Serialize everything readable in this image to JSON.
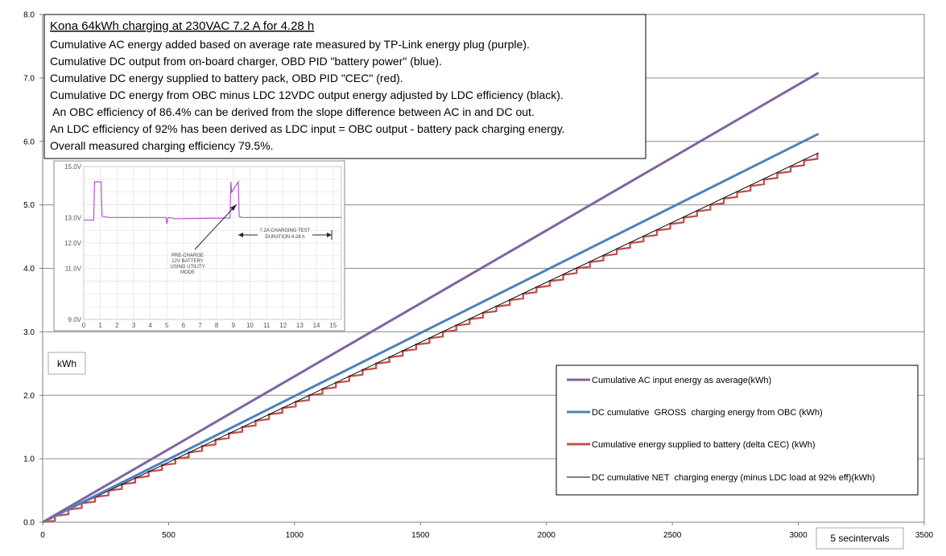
{
  "chart_data": {
    "type": "line",
    "xlim": [
      0,
      3500
    ],
    "ylim": [
      0,
      8
    ],
    "x_ticks": [
      "0",
      "500",
      "1000",
      "1500",
      "2000",
      "2500",
      "3000",
      "3500"
    ],
    "y_ticks": [
      "0.0",
      "1.0",
      "2.0",
      "3.0",
      "4.0",
      "5.0",
      "6.0",
      "7.0",
      "8.0"
    ],
    "ylabel": "kWh",
    "xlabel": "5 secintervals",
    "grid": "horizontal",
    "legend_position": "bottom-right",
    "info_title": "Kona 64kWh charging at 230VAC 7.2 A for 4.28 h",
    "info_lines": [
      "Cumulative AC energy added based on average rate measured by TP-Link energy plug (purple).",
      "Cumulative DC output from on-board charger, OBD PID \"battery power\" (blue).",
      "Cumulative DC energy supplied to battery pack, OBD PID \"CEC\" (red).",
      "Cumulative DC energy from OBC minus LDC 12VDC output energy adjusted by LDC efficiency (black).",
      " An OBC efficiency of 86.4% can be derived from the slope difference between AC in and DC out.",
      "An LDC efficiency of 92% has been derived as LDC input = OBC output - battery pack charging energy.",
      "Overall measured charging  efficiency 79.5%."
    ],
    "series": [
      {
        "name": "Cumulative AC input energy as average(kWh)",
        "color": "#8064A2",
        "style": "line",
        "x": [
          0,
          3080
        ],
        "y": [
          0,
          7.08
        ]
      },
      {
        "name": "DC cumulative  GROSS  charging energy from OBC (kWh)",
        "color": "#4F81BD",
        "style": "line",
        "x": [
          0,
          3080
        ],
        "y": [
          0,
          6.12
        ]
      },
      {
        "name": "Cumulative energy supplied to battery (delta CEC) (kWh)",
        "color": "#C0504D",
        "style": "step",
        "x": [
          0,
          3080
        ],
        "y": [
          0,
          5.8
        ],
        "step_kwh": 0.1
      },
      {
        "name": "DC cumulative NET  charging energy (minus LDC load at 92% eff)(kWh)",
        "color": "#000000",
        "style": "line",
        "x": [
          0,
          3080
        ],
        "y": [
          0,
          5.82
        ]
      }
    ],
    "inset": {
      "type": "line",
      "xlim": [
        0,
        15.5
      ],
      "ylim": [
        9,
        15
      ],
      "x_ticks": [
        "0",
        "1",
        "2",
        "3",
        "4",
        "5",
        "6",
        "7",
        "8",
        "9",
        "10",
        "11",
        "12",
        "13",
        "14",
        "15"
      ],
      "y_ticks": [
        "9.0V",
        "11.0V",
        "12.0V",
        "13.0V",
        "15.0V"
      ],
      "color": "#B455C8",
      "x": [
        0,
        0.6,
        0.65,
        0.75,
        1.05,
        1.1,
        1.5,
        4.95,
        5.0,
        5.08,
        5.15,
        5.5,
        8.8,
        8.85,
        8.9,
        9.3,
        9.35,
        9.5,
        15.5
      ],
      "y": [
        12.9,
        12.9,
        14.4,
        14.4,
        14.4,
        13.05,
        13.0,
        13.0,
        12.75,
        13.0,
        13.0,
        12.95,
        12.98,
        14.4,
        14.0,
        14.4,
        13.05,
        13.0,
        13.0
      ],
      "annotation_left": [
        "PRE-CHARGE",
        "12V BATTERY",
        "USING UTILITY",
        "MODE"
      ],
      "annotation_right": [
        "7.2A CHARGING TEST",
        "DURATION 4.28 h"
      ]
    }
  }
}
